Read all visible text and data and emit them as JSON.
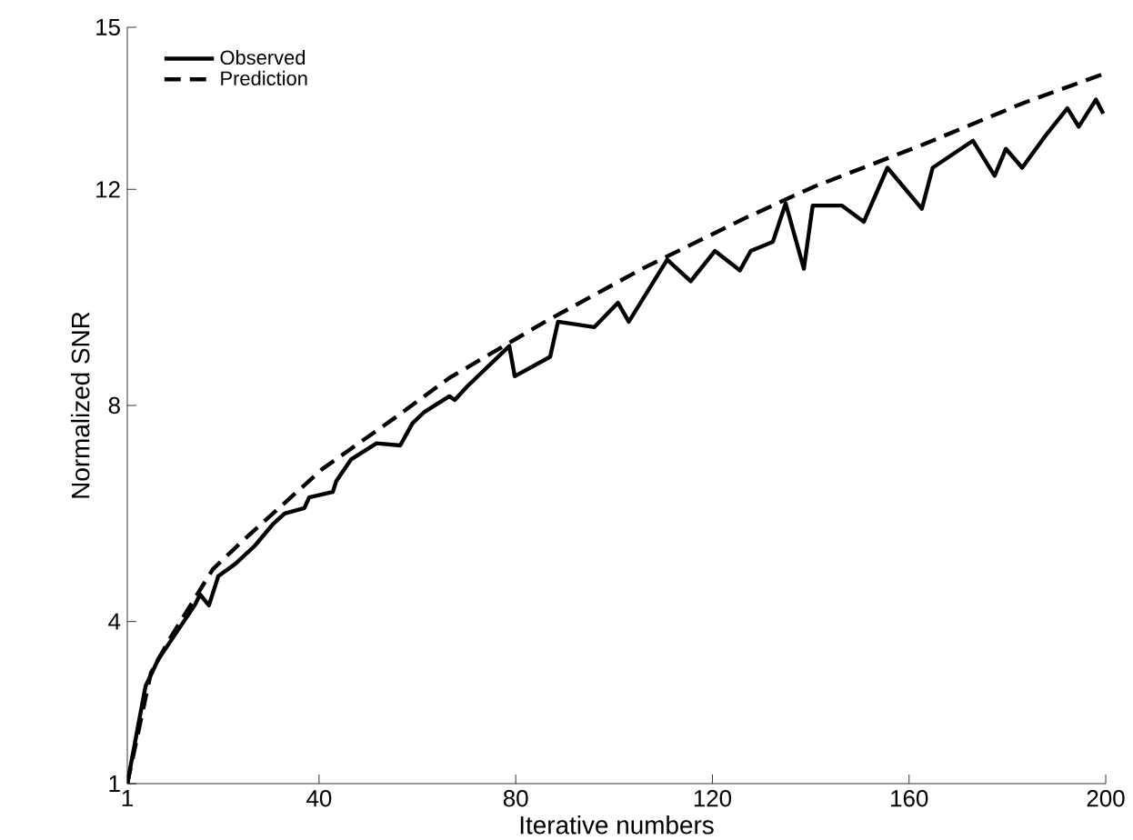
{
  "chart_data": {
    "type": "line",
    "xlabel": "Iterative numbers",
    "ylabel": "Normalized SNR",
    "xlim": [
      1,
      200
    ],
    "ylim": [
      1,
      15
    ],
    "xticks": [
      1,
      40,
      80,
      120,
      160,
      200
    ],
    "yticks": [
      1,
      4,
      8,
      12,
      15
    ],
    "grid": false,
    "legend": "top left",
    "marker": "none",
    "series": [
      {
        "name": "Observed",
        "color": "#000000",
        "line_style": "solid",
        "x": [
          1,
          4.7,
          7.3,
          11,
          14.7,
          15.8,
          17.6,
          19.5,
          23,
          26.9,
          30.6,
          33,
          37,
          38,
          42.8,
          43.5,
          46.5,
          51.7,
          56.5,
          59,
          61.3,
          66.5,
          67.6,
          70,
          78.7,
          79.8,
          87,
          88.6,
          96,
          100.8,
          103,
          110.8,
          115.6,
          120.5,
          125.6,
          127.8,
          132.3,
          134.9,
          138.6,
          140.4,
          146.3,
          150.8,
          155.6,
          162.6,
          164.8,
          173,
          177.4,
          179.7,
          183,
          187.8,
          192.2,
          194.5,
          198,
          199.5
        ],
        "values": [
          1.0,
          2.8,
          3.3,
          3.8,
          4.3,
          4.5,
          4.3,
          4.84,
          5.07,
          5.4,
          5.8,
          6.0,
          6.1,
          6.3,
          6.4,
          6.6,
          7.0,
          7.3,
          7.26,
          7.67,
          7.87,
          8.17,
          8.1,
          8.34,
          9.1,
          8.54,
          8.9,
          9.55,
          9.45,
          9.9,
          9.55,
          10.7,
          10.3,
          10.86,
          10.5,
          10.86,
          11.03,
          11.74,
          10.53,
          11.7,
          11.7,
          11.4,
          12.4,
          11.64,
          12.4,
          12.9,
          12.25,
          12.75,
          12.4,
          13.0,
          13.5,
          13.16,
          13.66,
          13.4
        ]
      },
      {
        "name": "Prediction",
        "color": "#000000",
        "line_style": "dashed",
        "x": [
          1,
          5.8,
          9.5,
          18.4,
          24.3,
          40.6,
          55.4,
          66.5,
          86,
          105.7,
          126.7,
          140.4,
          162.6,
          183.3,
          200
        ],
        "values": [
          1,
          3.05,
          3.66,
          4.97,
          5.48,
          6.82,
          7.77,
          8.51,
          9.55,
          10.53,
          11.47,
          12.04,
          12.82,
          13.6,
          14.15
        ]
      }
    ]
  }
}
